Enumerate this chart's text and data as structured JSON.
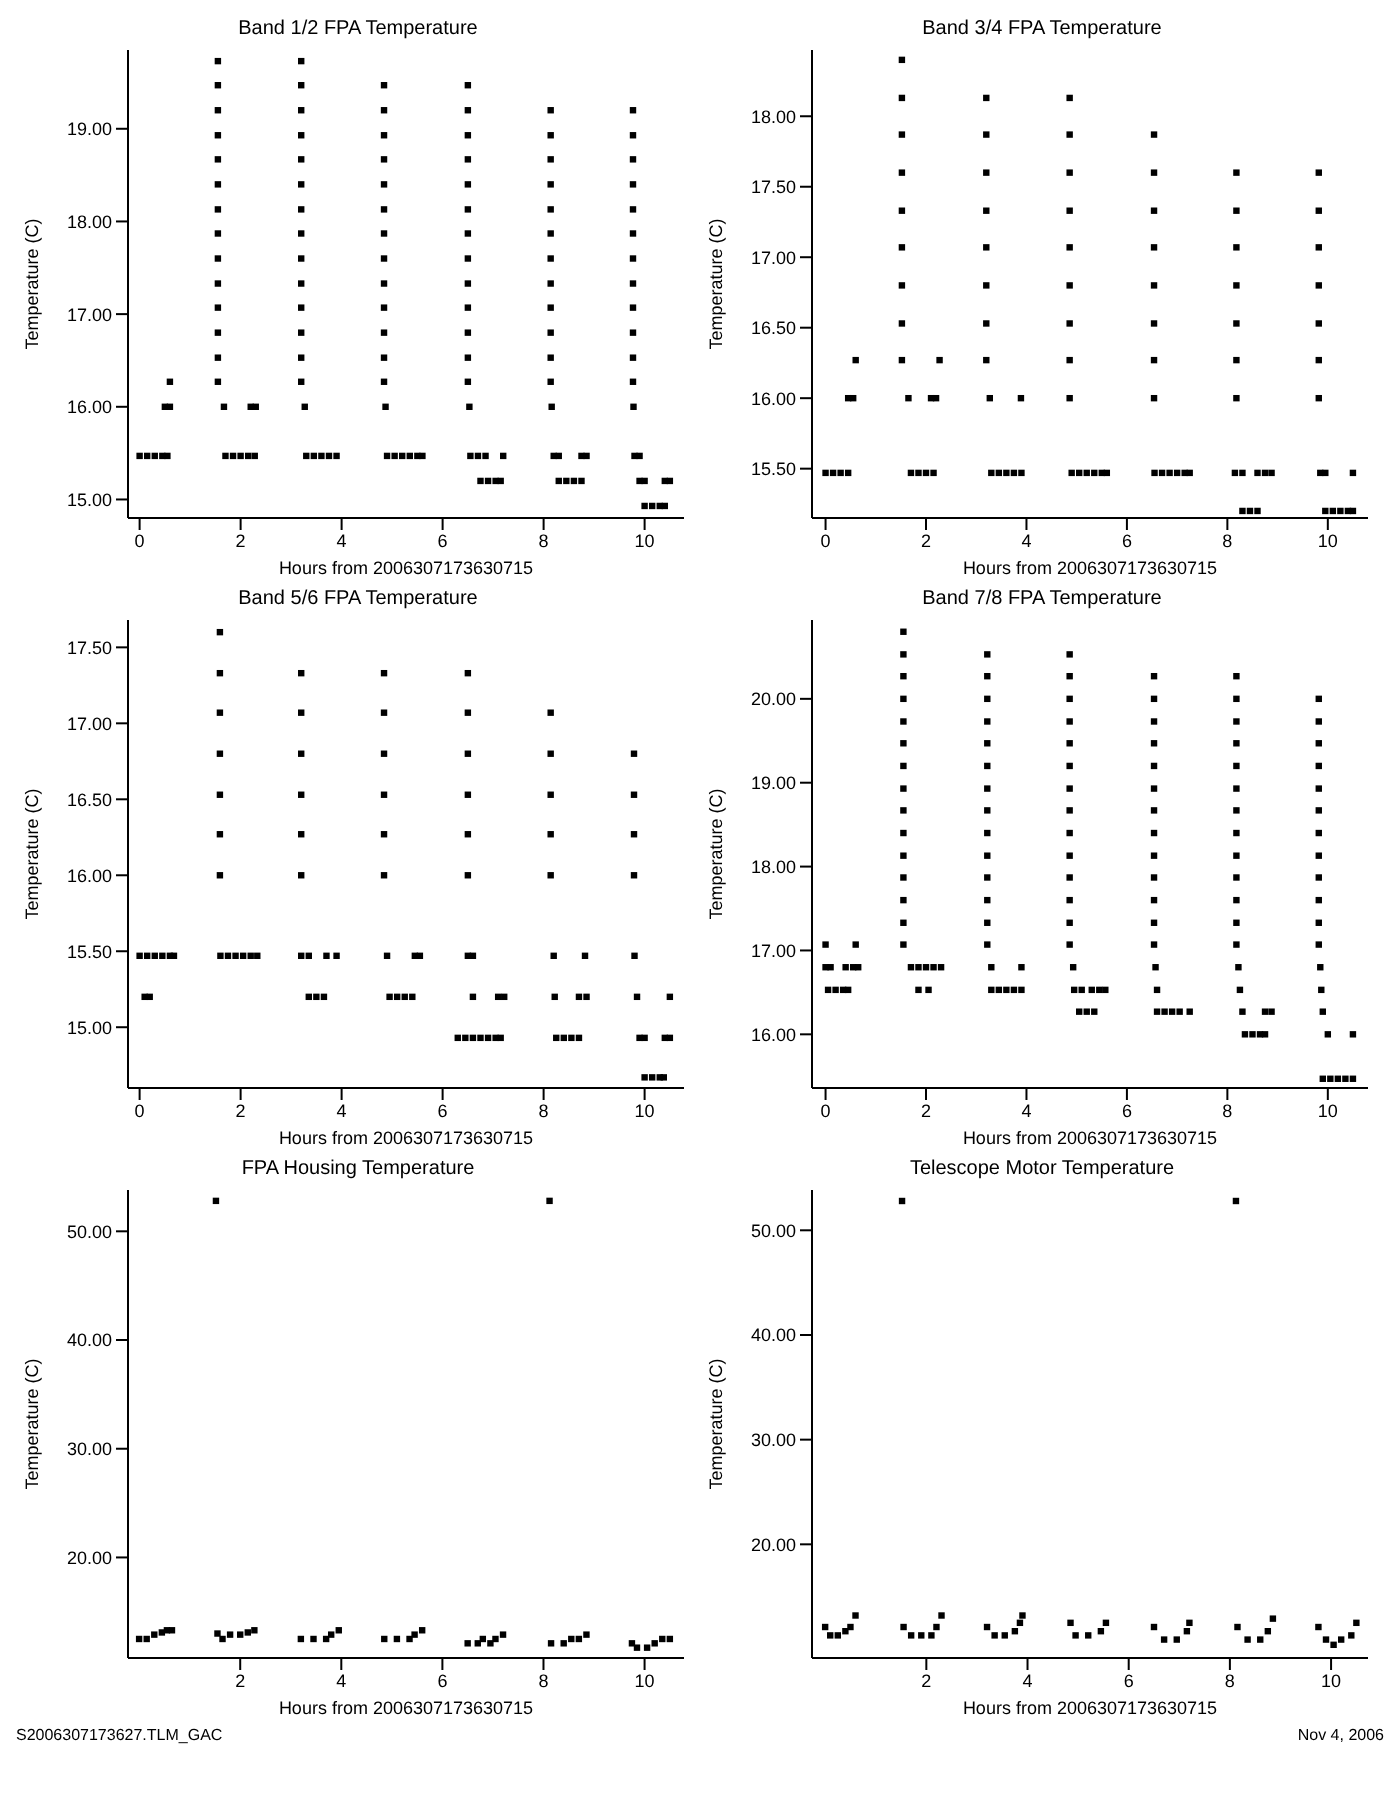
{
  "chart_data": [
    {
      "type": "scatter",
      "title": "Band 1/2 FPA Temperature",
      "xlabel": "Hours from 2006307173630715",
      "ylabel": "Temperature (C)",
      "marker": "square",
      "xlim": [
        -0.23,
        10.78
      ],
      "xticks": [
        0,
        2,
        4,
        6,
        8,
        10
      ],
      "ylim": [
        14.8,
        19.85
      ],
      "yticks": [
        {
          "value": 15,
          "label": "15.00"
        },
        {
          "value": 16,
          "label": "16.00"
        },
        {
          "value": 17,
          "label": "17.00"
        },
        {
          "value": 18,
          "label": "18.00"
        },
        {
          "value": 19,
          "label": "19.00"
        }
      ],
      "series": [
        {
          "color": "#000000",
          "x": [
            0,
            0.15,
            0.3,
            0.45,
            0.55,
            1.7,
            1.85,
            2,
            2.15,
            2.28,
            3.3,
            3.45,
            3.6,
            3.75,
            3.9,
            4.9,
            5.05,
            5.2,
            5.35,
            5.5,
            5.6,
            6.55,
            6.7,
            6.85,
            7.2,
            8.2,
            8.3,
            8.75,
            8.85,
            9.8,
            9.9
          ],
          "values": [
            15.47,
            15.47,
            15.47,
            15.47,
            15.47,
            15.47,
            15.47,
            15.47,
            15.47,
            15.47,
            15.47,
            15.47,
            15.47,
            15.47,
            15.47,
            15.47,
            15.47,
            15.47,
            15.47,
            15.47,
            15.47,
            15.47,
            15.47,
            15.47,
            15.47,
            15.47,
            15.47,
            15.47,
            15.47,
            15.47,
            15.47
          ]
        },
        {
          "color": "#000000",
          "x": [
            6.75,
            6.9,
            7.05,
            7.15,
            8.3,
            8.45,
            8.6,
            8.75,
            9.9,
            10,
            10.4,
            10.5
          ],
          "values": [
            15.2,
            15.2,
            15.2,
            15.2,
            15.2,
            15.2,
            15.2,
            15.2,
            15.2,
            15.2,
            15.2,
            15.2
          ]
        },
        {
          "color": "#000000",
          "x": [
            10,
            10.15,
            10.3,
            10.4
          ],
          "values": [
            14.93,
            14.93,
            14.93,
            14.93
          ]
        },
        {
          "color": "#000000",
          "x": [
            0.5,
            0.6,
            1.67,
            2.2,
            2.3,
            3.27,
            4.87,
            6.53,
            8.16,
            9.78,
            0.6
          ],
          "values": [
            16,
            16,
            16,
            16,
            16,
            16,
            16,
            16,
            16,
            16,
            16.27
          ]
        },
        {
          "color": "#000000",
          "x": [
            1.55,
            1.55,
            1.55,
            1.55,
            1.55,
            1.55,
            1.55,
            1.55,
            1.55,
            1.55,
            1.55,
            1.55,
            1.55,
            1.55
          ],
          "values": [
            16.27,
            16.53,
            16.8,
            17.07,
            17.33,
            17.6,
            17.87,
            18.13,
            18.4,
            18.67,
            18.93,
            19.2,
            19.47,
            19.73
          ]
        },
        {
          "color": "#000000",
          "x": [
            3.2,
            3.2,
            3.2,
            3.2,
            3.2,
            3.2,
            3.2,
            3.2,
            3.2,
            3.2,
            3.2,
            3.2,
            3.2,
            3.2
          ],
          "values": [
            16.27,
            16.53,
            16.8,
            17.07,
            17.33,
            17.6,
            17.87,
            18.13,
            18.4,
            18.67,
            18.93,
            19.2,
            19.47,
            19.73
          ]
        },
        {
          "color": "#000000",
          "x": [
            4.84,
            4.84,
            4.84,
            4.84,
            4.84,
            4.84,
            4.84,
            4.84,
            4.84,
            4.84,
            4.84,
            4.84,
            4.84
          ],
          "values": [
            16.27,
            16.53,
            16.8,
            17.07,
            17.33,
            17.6,
            17.87,
            18.13,
            18.4,
            18.67,
            18.93,
            19.2,
            19.47
          ]
        },
        {
          "color": "#000000",
          "x": [
            6.5,
            6.5,
            6.5,
            6.5,
            6.5,
            6.5,
            6.5,
            6.5,
            6.5,
            6.5,
            6.5,
            6.5,
            6.5
          ],
          "values": [
            16.27,
            16.53,
            16.8,
            17.07,
            17.33,
            17.6,
            17.87,
            18.13,
            18.4,
            18.67,
            18.93,
            19.2,
            19.47
          ]
        },
        {
          "color": "#000000",
          "x": [
            8.14,
            8.14,
            8.14,
            8.14,
            8.14,
            8.14,
            8.14,
            8.14,
            8.14,
            8.14,
            8.14,
            8.14
          ],
          "values": [
            16.27,
            16.53,
            16.8,
            17.07,
            17.33,
            17.6,
            17.87,
            18.13,
            18.4,
            18.67,
            18.93,
            19.2
          ]
        },
        {
          "color": "#000000",
          "x": [
            9.77,
            9.77,
            9.77,
            9.77,
            9.77,
            9.77,
            9.77,
            9.77,
            9.77,
            9.77,
            9.77,
            9.77
          ],
          "values": [
            16.27,
            16.53,
            16.8,
            17.07,
            17.33,
            17.6,
            17.87,
            18.13,
            18.4,
            18.67,
            18.93,
            19.2
          ]
        }
      ]
    },
    {
      "type": "scatter",
      "title": "Band 3/4 FPA Temperature",
      "xlabel": "Hours from 2006307173630715",
      "ylabel": "Temperature (C)",
      "marker": "square",
      "xlim": [
        -0.27,
        10.8
      ],
      "xticks": [
        0,
        2,
        4,
        6,
        8,
        10
      ],
      "ylim": [
        15.15,
        18.47
      ],
      "yticks": [
        {
          "value": 15.5,
          "label": "15.50"
        },
        {
          "value": 16,
          "label": "16.00"
        },
        {
          "value": 16.5,
          "label": "16.50"
        },
        {
          "value": 17,
          "label": "17.00"
        },
        {
          "value": 17.5,
          "label": "17.50"
        },
        {
          "value": 18,
          "label": "18.00"
        }
      ],
      "series": [
        {
          "color": "#000000",
          "x": [
            0,
            0.15,
            0.3,
            0.45,
            1.7,
            1.85,
            2,
            2.15,
            3.3,
            3.45,
            3.6,
            3.75,
            3.9,
            4.9,
            5.05,
            5.2,
            5.35,
            5.5,
            5.6,
            6.55,
            6.7,
            6.85,
            7,
            7.15,
            7.25,
            8.15,
            8.3,
            8.6,
            8.75,
            8.88,
            9.85,
            9.95,
            10.5
          ],
          "values": [
            15.47,
            15.47,
            15.47,
            15.47,
            15.47,
            15.47,
            15.47,
            15.47,
            15.47,
            15.47,
            15.47,
            15.47,
            15.47,
            15.47,
            15.47,
            15.47,
            15.47,
            15.47,
            15.47,
            15.47,
            15.47,
            15.47,
            15.47,
            15.47,
            15.47,
            15.47,
            15.47,
            15.47,
            15.47,
            15.47,
            15.47,
            15.47,
            15.47
          ]
        },
        {
          "color": "#000000",
          "x": [
            8.3,
            8.45,
            8.6,
            9.95,
            10.1,
            10.25,
            10.4,
            10.5
          ],
          "values": [
            15.2,
            15.2,
            15.2,
            15.2,
            15.2,
            15.2,
            15.2,
            15.2
          ]
        },
        {
          "color": "#000000",
          "x": [
            0.45,
            0.55,
            1.65,
            2.1,
            2.2,
            3.27,
            3.89,
            4.86,
            6.54,
            8.18,
            9.82,
            0.6,
            2.27
          ],
          "values": [
            16,
            16,
            16,
            16,
            16,
            16,
            16,
            16,
            16,
            16,
            16,
            16.27,
            16.27
          ]
        },
        {
          "color": "#000000",
          "x": [
            1.52,
            1.52,
            1.52,
            1.52,
            1.52,
            1.52,
            1.52,
            1.52,
            1.52
          ],
          "values": [
            16.27,
            16.53,
            16.8,
            17.07,
            17.33,
            17.6,
            17.87,
            18.13,
            18.4
          ]
        },
        {
          "color": "#000000",
          "x": [
            3.2,
            3.2,
            3.2,
            3.2,
            3.2,
            3.2,
            3.2,
            3.2
          ],
          "values": [
            16.27,
            16.53,
            16.8,
            17.07,
            17.33,
            17.6,
            17.87,
            18.13
          ]
        },
        {
          "color": "#000000",
          "x": [
            4.86,
            4.86,
            4.86,
            4.86,
            4.86,
            4.86,
            4.86,
            4.86
          ],
          "values": [
            16.27,
            16.53,
            16.8,
            17.07,
            17.33,
            17.6,
            17.87,
            18.13
          ]
        },
        {
          "color": "#000000",
          "x": [
            6.54,
            6.54,
            6.54,
            6.54,
            6.54,
            6.54,
            6.54
          ],
          "values": [
            16.27,
            16.53,
            16.8,
            17.07,
            17.33,
            17.6,
            17.87
          ]
        },
        {
          "color": "#000000",
          "x": [
            8.18,
            8.18,
            8.18,
            8.18,
            8.18,
            8.18
          ],
          "values": [
            16.27,
            16.53,
            16.8,
            17.07,
            17.33,
            17.6
          ]
        },
        {
          "color": "#000000",
          "x": [
            9.82,
            9.82,
            9.82,
            9.82,
            9.82,
            9.82
          ],
          "values": [
            16.27,
            16.53,
            16.8,
            17.07,
            17.33,
            17.6
          ]
        }
      ]
    },
    {
      "type": "scatter",
      "title": "Band 5/6 FPA Temperature",
      "xlabel": "Hours from 2006307173630715",
      "ylabel": "Temperature (C)",
      "marker": "square",
      "xlim": [
        -0.23,
        10.78
      ],
      "xticks": [
        0,
        2,
        4,
        6,
        8,
        10
      ],
      "ylim": [
        14.6,
        17.68
      ],
      "yticks": [
        {
          "value": 15,
          "label": "15.00"
        },
        {
          "value": 15.5,
          "label": "15.50"
        },
        {
          "value": 16,
          "label": "16.00"
        },
        {
          "value": 16.5,
          "label": "16.50"
        },
        {
          "value": 17,
          "label": "17.00"
        },
        {
          "value": 17.5,
          "label": "17.50"
        }
      ],
      "series": [
        {
          "color": "#000000",
          "x": [
            0,
            0.15,
            0.3,
            0.45,
            0.6,
            0.68,
            1.6,
            1.75,
            1.9,
            2.05,
            2.2,
            2.33,
            3.2,
            3.35,
            3.7,
            3.9,
            4.9,
            5.45,
            5.55,
            6.5,
            6.6,
            8.2,
            8.82,
            9.8
          ],
          "values": [
            15.47,
            15.47,
            15.47,
            15.47,
            15.47,
            15.47,
            15.47,
            15.47,
            15.47,
            15.47,
            15.47,
            15.47,
            15.47,
            15.47,
            15.47,
            15.47,
            15.47,
            15.47,
            15.47,
            15.47,
            15.47,
            15.47,
            15.47,
            15.47
          ]
        },
        {
          "color": "#000000",
          "x": [
            0.1,
            0.2,
            3.35,
            3.5,
            3.65,
            4.95,
            5.1,
            5.25,
            5.4,
            6.6,
            7.1,
            7.22,
            8.22,
            8.7,
            8.85,
            9.85,
            10.5
          ],
          "values": [
            15.2,
            15.2,
            15.2,
            15.2,
            15.2,
            15.2,
            15.2,
            15.2,
            15.2,
            15.2,
            15.2,
            15.2,
            15.2,
            15.2,
            15.2,
            15.2,
            15.2
          ]
        },
        {
          "color": "#000000",
          "x": [
            6.3,
            6.45,
            6.6,
            6.75,
            6.9,
            7.05,
            7.15,
            8.25,
            8.4,
            8.55,
            8.7,
            9.9,
            10,
            10.4,
            10.5
          ],
          "values": [
            14.93,
            14.93,
            14.93,
            14.93,
            14.93,
            14.93,
            14.93,
            14.93,
            14.93,
            14.93,
            14.93,
            14.93,
            14.93,
            14.93,
            14.93
          ]
        },
        {
          "color": "#000000",
          "x": [
            10,
            10.15,
            10.3,
            10.38
          ],
          "values": [
            14.67,
            14.67,
            14.67,
            14.67
          ]
        },
        {
          "color": "#000000",
          "x": [
            1.59,
            1.59,
            1.59,
            1.59,
            1.59,
            1.59,
            1.59
          ],
          "values": [
            16,
            16.27,
            16.53,
            16.8,
            17.07,
            17.33,
            17.6
          ]
        },
        {
          "color": "#000000",
          "x": [
            3.2,
            3.2,
            3.2,
            3.2,
            3.2,
            3.2
          ],
          "values": [
            16,
            16.27,
            16.53,
            16.8,
            17.07,
            17.33
          ]
        },
        {
          "color": "#000000",
          "x": [
            4.84,
            4.84,
            4.84,
            4.84,
            4.84,
            4.84
          ],
          "values": [
            16,
            16.27,
            16.53,
            16.8,
            17.07,
            17.33
          ]
        },
        {
          "color": "#000000",
          "x": [
            6.5,
            6.5,
            6.5,
            6.5,
            6.5,
            6.5
          ],
          "values": [
            16,
            16.27,
            16.53,
            16.8,
            17.07,
            17.33
          ]
        },
        {
          "color": "#000000",
          "x": [
            8.14,
            8.14,
            8.14,
            8.14,
            8.14
          ],
          "values": [
            16,
            16.27,
            16.53,
            16.8,
            17.07
          ]
        },
        {
          "color": "#000000",
          "x": [
            9.79,
            9.79,
            9.79,
            9.79
          ],
          "values": [
            16,
            16.27,
            16.53,
            16.8
          ]
        }
      ]
    },
    {
      "type": "scatter",
      "title": "Band 7/8 FPA Temperature",
      "xlabel": "Hours from 2006307173630715",
      "ylabel": "Temperature (C)",
      "marker": "square",
      "xlim": [
        -0.27,
        10.8
      ],
      "xticks": [
        0,
        2,
        4,
        6,
        8,
        10
      ],
      "ylim": [
        15.36,
        20.94
      ],
      "yticks": [
        {
          "value": 16,
          "label": "16.00"
        },
        {
          "value": 17,
          "label": "17.00"
        },
        {
          "value": 18,
          "label": "18.00"
        },
        {
          "value": 19,
          "label": "19.00"
        },
        {
          "value": 20,
          "label": "20.00"
        }
      ],
      "series": [
        {
          "color": "#000000",
          "x": [
            0,
            0.1,
            0.4,
            0.55,
            0.65,
            1.7,
            1.85,
            2,
            2.15,
            2.3,
            3.3,
            3.9,
            4.93,
            6.57,
            8.22,
            9.85,
            0,
            0.6
          ],
          "values": [
            16.8,
            16.8,
            16.8,
            16.8,
            16.8,
            16.8,
            16.8,
            16.8,
            16.8,
            16.8,
            16.8,
            16.8,
            16.8,
            16.8,
            16.8,
            16.8,
            17.07,
            17.07
          ]
        },
        {
          "color": "#000000",
          "x": [
            0.05,
            0.2,
            0.35,
            0.45,
            1.85,
            2.05,
            3.3,
            3.45,
            3.6,
            3.75,
            3.9,
            4.95,
            5.1,
            5.3,
            5.45,
            5.57,
            6.6,
            8.25,
            9.87
          ],
          "values": [
            16.53,
            16.53,
            16.53,
            16.53,
            16.53,
            16.53,
            16.53,
            16.53,
            16.53,
            16.53,
            16.53,
            16.53,
            16.53,
            16.53,
            16.53,
            16.53,
            16.53,
            16.53,
            16.53
          ]
        },
        {
          "color": "#000000",
          "x": [
            5.05,
            5.2,
            5.35,
            6.6,
            6.75,
            6.9,
            7.05,
            7.25,
            8.3,
            8.75,
            8.88,
            9.9
          ],
          "values": [
            16.27,
            16.27,
            16.27,
            16.27,
            16.27,
            16.27,
            16.27,
            16.27,
            16.27,
            16.27,
            16.27,
            16.27
          ]
        },
        {
          "color": "#000000",
          "x": [
            8.35,
            8.5,
            8.65,
            8.75,
            10,
            10.5
          ],
          "values": [
            16,
            16,
            16,
            16,
            16,
            16
          ]
        },
        {
          "color": "#000000",
          "x": [
            9.9,
            10.05,
            10.2,
            10.35,
            10.5
          ],
          "values": [
            15.47,
            15.47,
            15.47,
            15.47,
            15.47
          ]
        },
        {
          "color": "#000000",
          "x": [
            1.55,
            1.55,
            1.55,
            1.55,
            1.55,
            1.55,
            1.55,
            1.55,
            1.55,
            1.55,
            1.55,
            1.55,
            1.55,
            1.55,
            1.55
          ],
          "values": [
            17.07,
            17.33,
            17.6,
            17.87,
            18.13,
            18.4,
            18.67,
            18.93,
            19.2,
            19.47,
            19.73,
            20,
            20.27,
            20.53,
            20.8
          ]
        },
        {
          "color": "#000000",
          "x": [
            3.22,
            3.22,
            3.22,
            3.22,
            3.22,
            3.22,
            3.22,
            3.22,
            3.22,
            3.22,
            3.22,
            3.22,
            3.22,
            3.22
          ],
          "values": [
            17.07,
            17.33,
            17.6,
            17.87,
            18.13,
            18.4,
            18.67,
            18.93,
            19.2,
            19.47,
            19.73,
            20,
            20.27,
            20.53
          ]
        },
        {
          "color": "#000000",
          "x": [
            4.86,
            4.86,
            4.86,
            4.86,
            4.86,
            4.86,
            4.86,
            4.86,
            4.86,
            4.86,
            4.86,
            4.86,
            4.86,
            4.86
          ],
          "values": [
            17.07,
            17.33,
            17.6,
            17.87,
            18.13,
            18.4,
            18.67,
            18.93,
            19.2,
            19.47,
            19.73,
            20,
            20.27,
            20.53
          ]
        },
        {
          "color": "#000000",
          "x": [
            6.54,
            6.54,
            6.54,
            6.54,
            6.54,
            6.54,
            6.54,
            6.54,
            6.54,
            6.54,
            6.54,
            6.54,
            6.54
          ],
          "values": [
            17.07,
            17.33,
            17.6,
            17.87,
            18.13,
            18.4,
            18.67,
            18.93,
            19.2,
            19.47,
            19.73,
            20,
            20.27
          ]
        },
        {
          "color": "#000000",
          "x": [
            8.18,
            8.18,
            8.18,
            8.18,
            8.18,
            8.18,
            8.18,
            8.18,
            8.18,
            8.18,
            8.18,
            8.18,
            8.18
          ],
          "values": [
            17.07,
            17.33,
            17.6,
            17.87,
            18.13,
            18.4,
            18.67,
            18.93,
            19.2,
            19.47,
            19.73,
            20,
            20.27
          ]
        },
        {
          "color": "#000000",
          "x": [
            9.82,
            9.82,
            9.82,
            9.82,
            9.82,
            9.82,
            9.82,
            9.82,
            9.82,
            9.82,
            9.82,
            9.82
          ],
          "values": [
            17.07,
            17.33,
            17.6,
            17.87,
            18.13,
            18.4,
            18.67,
            18.93,
            19.2,
            19.47,
            19.73,
            20
          ]
        }
      ]
    },
    {
      "type": "scatter",
      "title": "FPA Housing Temperature",
      "xlabel": "Hours from 2006307173630715",
      "ylabel": "Temperature (C)",
      "marker": "square",
      "annotations": [
        "S2006307173627.TLM_GAC"
      ],
      "xlim": [
        -0.22,
        10.78
      ],
      "xticks": [
        2,
        4,
        6,
        8,
        10
      ],
      "ylim": [
        10.75,
        53.8
      ],
      "yticks": [
        {
          "value": 20,
          "label": "20.00"
        },
        {
          "value": 30,
          "label": "30.00"
        },
        {
          "value": 40,
          "label": "40.00"
        },
        {
          "value": 50,
          "label": "50.00"
        }
      ],
      "series": [
        {
          "color": "#000000",
          "x": [
            0,
            0.15,
            0.3,
            0.45,
            0.55,
            0.65,
            1.52,
            1.55,
            1.65,
            1.8,
            2,
            2.15,
            2.28,
            3.2,
            3.45,
            3.7,
            3.8,
            3.95,
            4.85,
            5.1,
            5.35,
            5.45,
            5.6,
            6.5,
            6.7,
            6.8,
            6.95,
            7.05,
            7.2,
            8.12,
            8.15,
            8.4,
            8.55,
            8.7,
            8.85,
            9.75,
            9.85,
            10.05,
            10.2,
            10.35,
            10.5
          ],
          "values": [
            12.5,
            12.5,
            12.9,
            13.1,
            13.3,
            13.3,
            52.8,
            13,
            12.5,
            12.9,
            12.9,
            13.1,
            13.3,
            12.5,
            12.5,
            12.5,
            12.9,
            13.3,
            12.5,
            12.5,
            12.5,
            12.9,
            13.3,
            12.1,
            12.1,
            12.5,
            12.1,
            12.5,
            12.9,
            52.8,
            12.1,
            12.1,
            12.5,
            12.5,
            12.9,
            12.1,
            11.7,
            11.7,
            12.1,
            12.5,
            12.5
          ]
        }
      ]
    },
    {
      "type": "scatter",
      "title": "Telescope Motor Temperature",
      "xlabel": "Hours from 2006307173630715",
      "ylabel": "Temperature (C)",
      "marker": "square",
      "annotations": [
        "Nov  4, 2006"
      ],
      "xlim": [
        -0.26,
        10.73
      ],
      "xticks": [
        2,
        4,
        6,
        8,
        10
      ],
      "ylim": [
        9.14,
        53.85
      ],
      "yticks": [
        {
          "value": 20,
          "label": "20.00"
        },
        {
          "value": 30,
          "label": "30.00"
        },
        {
          "value": 40,
          "label": "40.00"
        },
        {
          "value": 50,
          "label": "50.00"
        }
      ],
      "series": [
        {
          "color": "#000000",
          "x": [
            0,
            0.1,
            0.25,
            0.4,
            0.5,
            0.6,
            1.52,
            1.55,
            1.7,
            1.9,
            2.1,
            2.2,
            2.3,
            3.2,
            3.35,
            3.55,
            3.75,
            3.85,
            3.9,
            4.85,
            4.95,
            5.2,
            5.45,
            5.55,
            6.5,
            6.7,
            6.95,
            7.15,
            7.2,
            8.12,
            8.15,
            8.35,
            8.6,
            8.75,
            8.85,
            9.75,
            9.9,
            10.05,
            10.2,
            10.4,
            10.5
          ],
          "values": [
            12.1,
            11.3,
            11.3,
            11.7,
            12.1,
            13.2,
            52.8,
            12.1,
            11.3,
            11.3,
            11.3,
            12.1,
            13.2,
            12.1,
            11.3,
            11.3,
            11.7,
            12.5,
            13.2,
            12.5,
            11.3,
            11.3,
            11.7,
            12.5,
            12.1,
            10.9,
            10.9,
            11.7,
            12.5,
            52.8,
            12.1,
            10.9,
            10.9,
            11.7,
            12.9,
            12.1,
            10.9,
            10.4,
            10.9,
            11.3,
            12.5
          ]
        }
      ]
    }
  ]
}
